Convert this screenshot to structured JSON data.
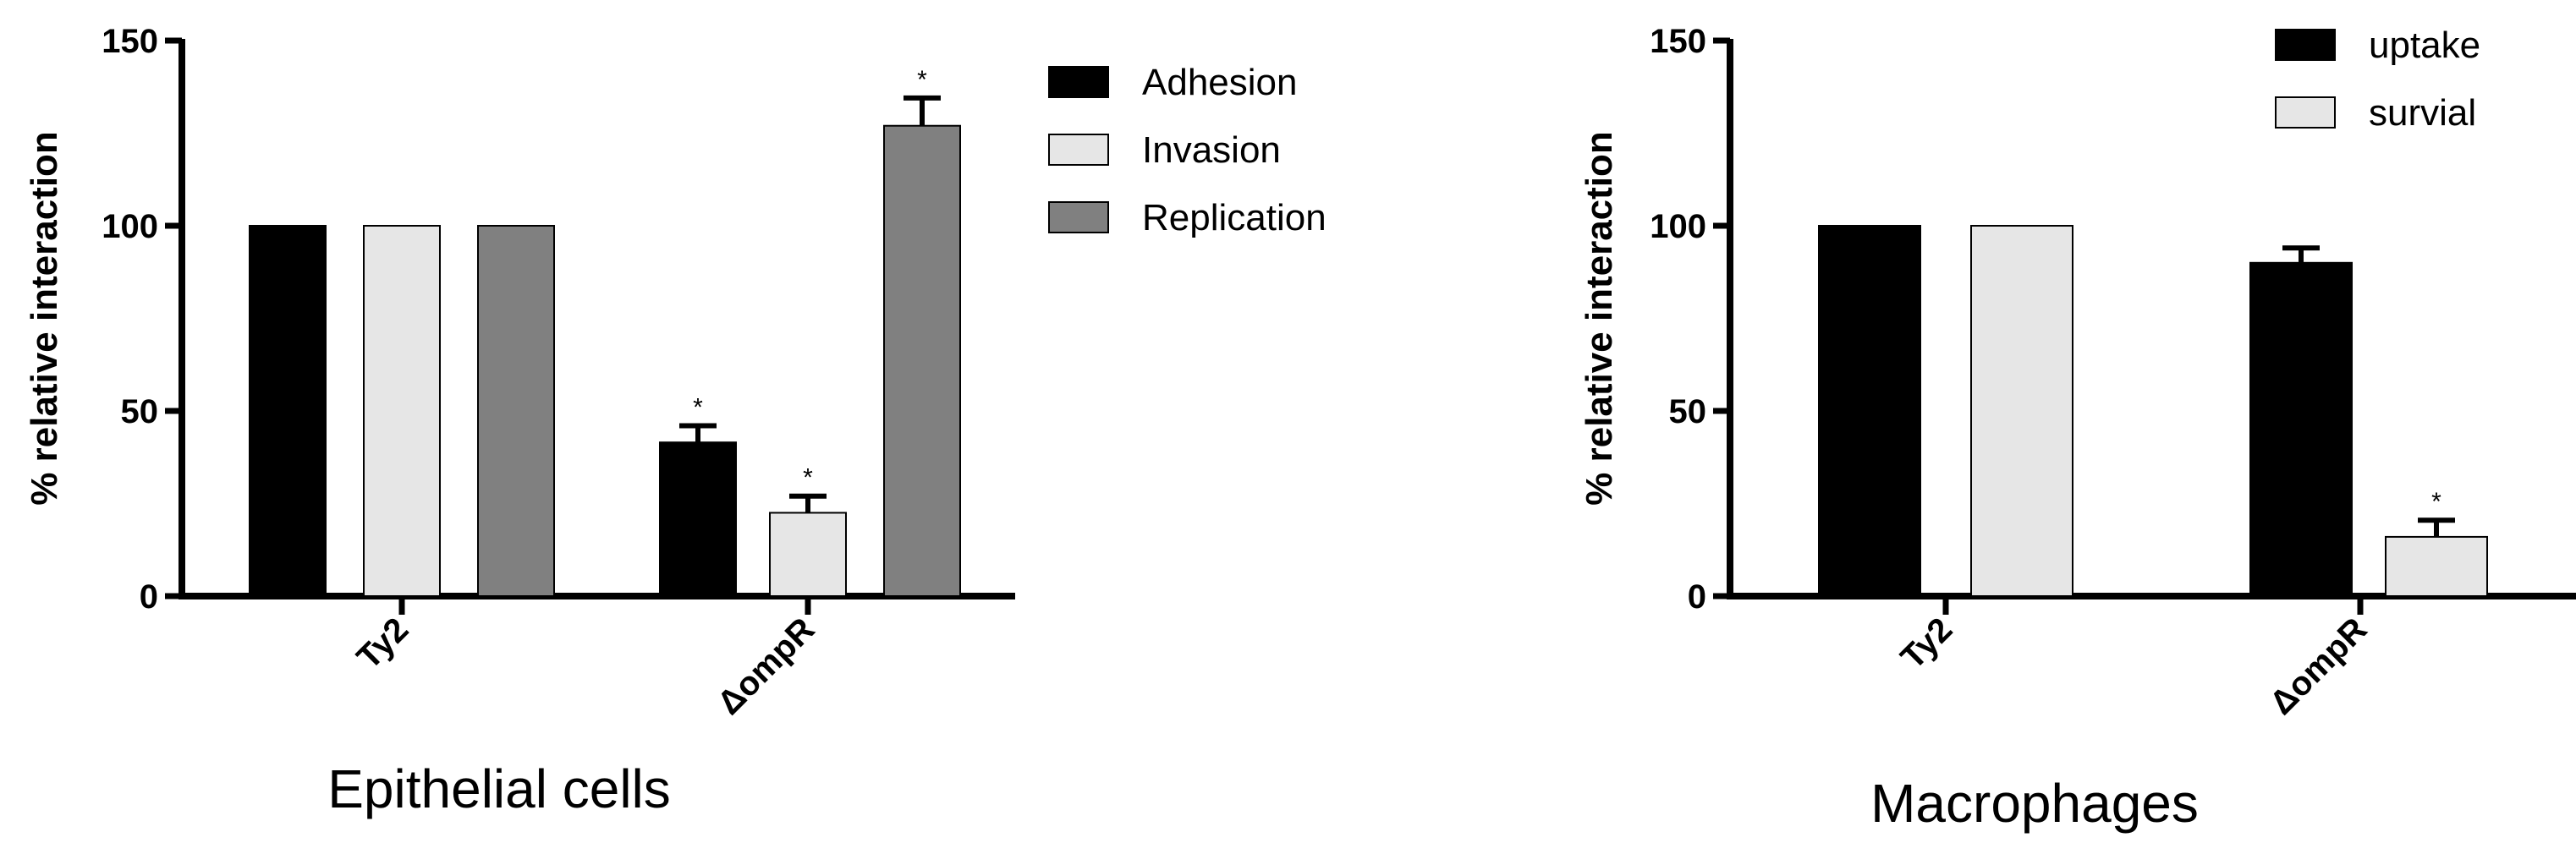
{
  "chart_data": [
    {
      "type": "bar",
      "title": "Epithelial cells",
      "xlabel": "",
      "ylabel": "% relative interaction",
      "ylim": [
        0,
        150
      ],
      "yticks": [
        0,
        50,
        100,
        150
      ],
      "categories": [
        "Ty2",
        "ΔompR"
      ],
      "series": [
        {
          "name": "Adhesion",
          "color": "#000000",
          "values": [
            100,
            41.5
          ],
          "errors": [
            0,
            4.5
          ],
          "significant": [
            false,
            true
          ]
        },
        {
          "name": "Invasion",
          "color": "#e6e6e6",
          "values": [
            100,
            22.5
          ],
          "errors": [
            0,
            4.5
          ],
          "significant": [
            false,
            true
          ]
        },
        {
          "name": "Replication",
          "color": "#808080",
          "values": [
            100,
            127
          ],
          "errors": [
            0,
            7.5
          ],
          "significant": [
            false,
            true
          ]
        }
      ],
      "significance_marker": "*"
    },
    {
      "type": "bar",
      "title": "Macrophages",
      "xlabel": "",
      "ylabel": "% relative interaction",
      "ylim": [
        0,
        150
      ],
      "yticks": [
        0,
        50,
        100,
        150
      ],
      "categories": [
        "Ty2",
        "ΔompR"
      ],
      "series": [
        {
          "name": "uptake",
          "color": "#000000",
          "values": [
            100,
            90
          ],
          "errors": [
            0,
            4
          ],
          "significant": [
            false,
            false
          ]
        },
        {
          "name": "survial",
          "color": "#e6e6e6",
          "values": [
            100,
            16
          ],
          "errors": [
            0,
            4.5
          ],
          "significant": [
            false,
            true
          ]
        }
      ],
      "significance_marker": "*"
    }
  ]
}
